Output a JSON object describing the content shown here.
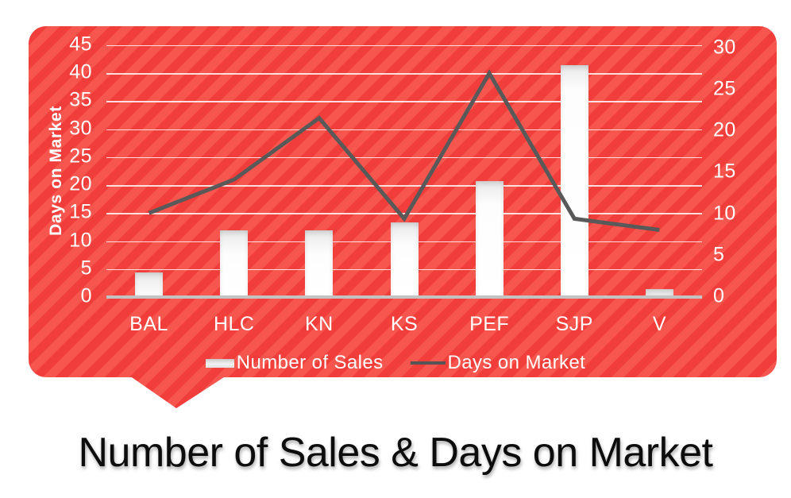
{
  "title": {
    "text": "Number of Sales & Days on Market"
  },
  "legend": {
    "items": [
      {
        "label": "Number of Sales",
        "swatch": "bar"
      },
      {
        "label": "Days on Market",
        "swatch": "line"
      }
    ]
  },
  "colors": {
    "bubble_fill": "#f23e3b",
    "bubble_stripe": "#f7564f",
    "grid": "#ffffff",
    "axis_baseline": "#c3c3c3",
    "bar_fill": "#ffffff",
    "line_color": "#595959",
    "tick_text": "#ffffff",
    "title_text": "#0d0d0d"
  },
  "chart_data": {
    "type": "bar",
    "subtype": "combo-bar-line",
    "title": "Number of Sales & Days on Market",
    "categories": [
      "BAL",
      "HLC",
      "KN",
      "KS",
      "PEF",
      "SJP",
      "V"
    ],
    "series": [
      {
        "name": "Number of Sales",
        "type": "bar",
        "axis": "right",
        "color": "#ffffff",
        "values": [
          3,
          8,
          8,
          9,
          14,
          28,
          1
        ]
      },
      {
        "name": "Days on Market",
        "type": "line",
        "axis": "left",
        "color": "#595959",
        "values": [
          15,
          21,
          32,
          14,
          40,
          14,
          12
        ]
      }
    ],
    "left_axis": {
      "title": "Days on Market",
      "min": 0,
      "max": 45,
      "step": 5,
      "tick_labels": [
        "0",
        "5",
        "10",
        "15",
        "20",
        "25",
        "30",
        "35",
        "40",
        "45"
      ]
    },
    "right_axis": {
      "title": "",
      "min": 0,
      "max": 30,
      "step": 5,
      "tick_labels": [
        "0",
        "5",
        "10",
        "15",
        "20",
        "25",
        "30"
      ]
    },
    "grid": true,
    "legend_position": "bottom"
  }
}
